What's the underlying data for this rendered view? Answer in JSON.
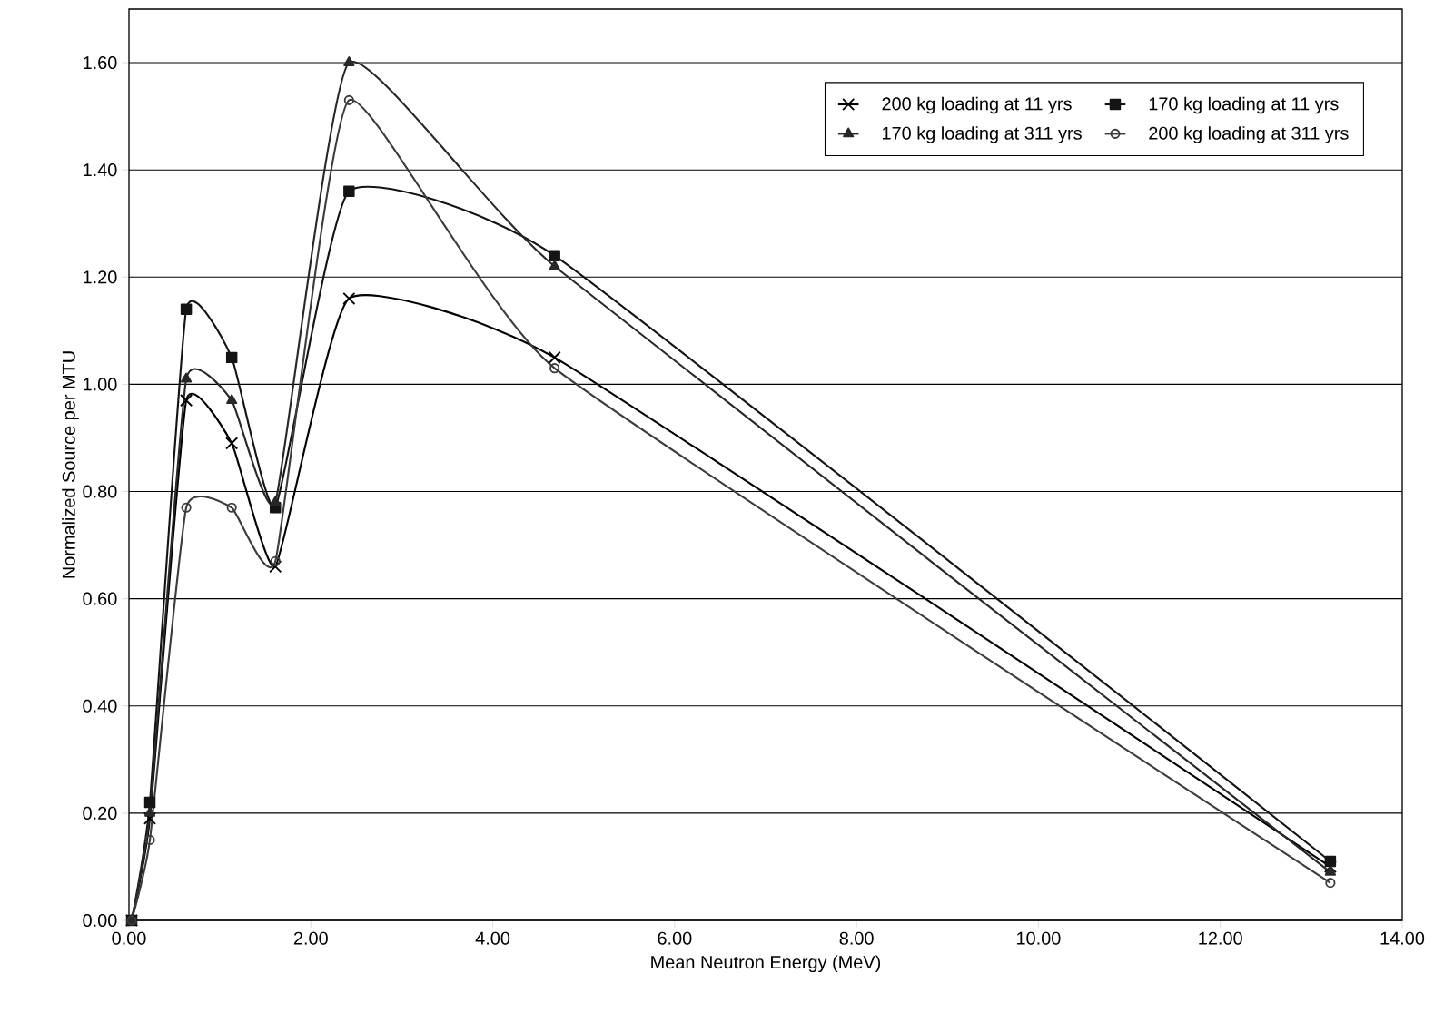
{
  "chart_data": {
    "type": "line",
    "xlabel": "Mean Neutron Energy (MeV)",
    "ylabel": "Normalized Source per MTU",
    "x": [
      0.03,
      0.23,
      0.63,
      1.13,
      1.61,
      2.42,
      4.68,
      13.21
    ],
    "series": [
      {
        "name": "200 kg loading at 11 yrs",
        "color": "#000000",
        "marker": "cross",
        "values": [
          0,
          0.19,
          0.97,
          0.89,
          0.66,
          1.16,
          1.05,
          0.1
        ]
      },
      {
        "name": "170 kg loading at 11 yrs",
        "color": "#141414",
        "marker": "square",
        "values": [
          0,
          0.22,
          1.14,
          1.05,
          0.77,
          1.36,
          1.24,
          0.11
        ]
      },
      {
        "name": "170 kg loading at 311 yrs",
        "color": "#282828",
        "marker": "triangle",
        "values": [
          0,
          0.2,
          1.01,
          0.97,
          0.78,
          1.6,
          1.22,
          0.09
        ]
      },
      {
        "name": "200 kg loading at 311 yrs",
        "color": "#3c3c3c",
        "marker": "circle",
        "values": [
          0,
          0.15,
          0.77,
          0.77,
          0.67,
          1.53,
          1.03,
          0.07
        ]
      }
    ],
    "xlim": [
      0,
      14
    ],
    "ylim": [
      0,
      1.7
    ],
    "xticks": [
      {
        "value": 0,
        "label": "0.00"
      },
      {
        "value": 2,
        "label": "2.00"
      },
      {
        "value": 4,
        "label": "4.00"
      },
      {
        "value": 6,
        "label": "6.00"
      },
      {
        "value": 8,
        "label": "8.00"
      },
      {
        "value": 10,
        "label": "10.00"
      },
      {
        "value": 12,
        "label": "12.00"
      },
      {
        "value": 14,
        "label": "14.00"
      }
    ],
    "yticks": [
      {
        "value": 0,
        "label": "0.00"
      },
      {
        "value": 0.2,
        "label": "0.20"
      },
      {
        "value": 0.4,
        "label": "0.40"
      },
      {
        "value": 0.6,
        "label": "0.60"
      },
      {
        "value": 0.8,
        "label": "0.80"
      },
      {
        "value": 1.0,
        "label": "1.00"
      },
      {
        "value": 1.2,
        "label": "1.20"
      },
      {
        "value": 1.4,
        "label": "1.40"
      },
      {
        "value": 1.6,
        "label": "1.60"
      }
    ],
    "grid": "y",
    "legend": "top right",
    "line_style": "solid"
  }
}
